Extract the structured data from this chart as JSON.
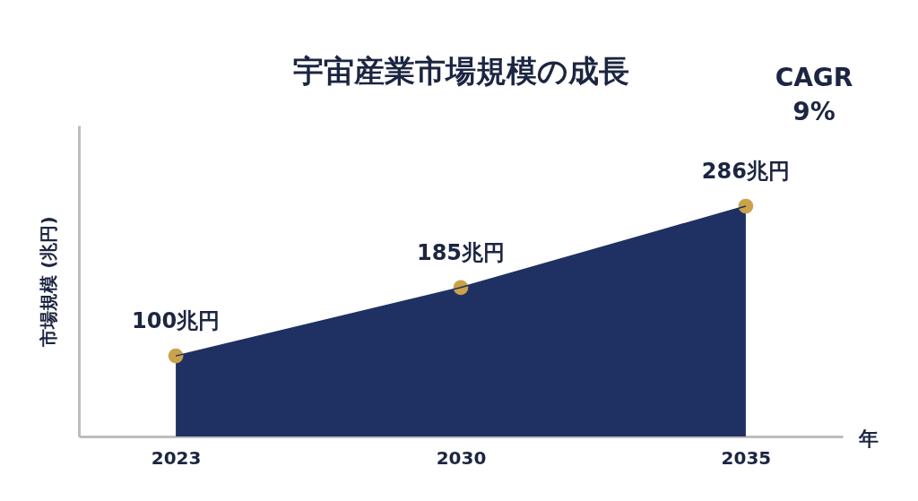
{
  "chart_data": {
    "type": "area",
    "title": "宇宙産業市場規模の成長",
    "xlabel": "年",
    "ylabel": "市場規模 (兆円)",
    "categories": [
      "2023",
      "2030",
      "2035"
    ],
    "series": [
      {
        "color": "#1f3062",
        "values": [
          100,
          185,
          286
        ]
      },
      {
        "type": "scatter",
        "color": "#c9a24a",
        "marker": "circle",
        "values": [
          100,
          185,
          286
        ],
        "value_labels": [
          "100兆円",
          "185兆円",
          "286兆円"
        ]
      }
    ],
    "tick_labels": "x",
    "annotations": [
      "CAGR 9%"
    ]
  }
}
